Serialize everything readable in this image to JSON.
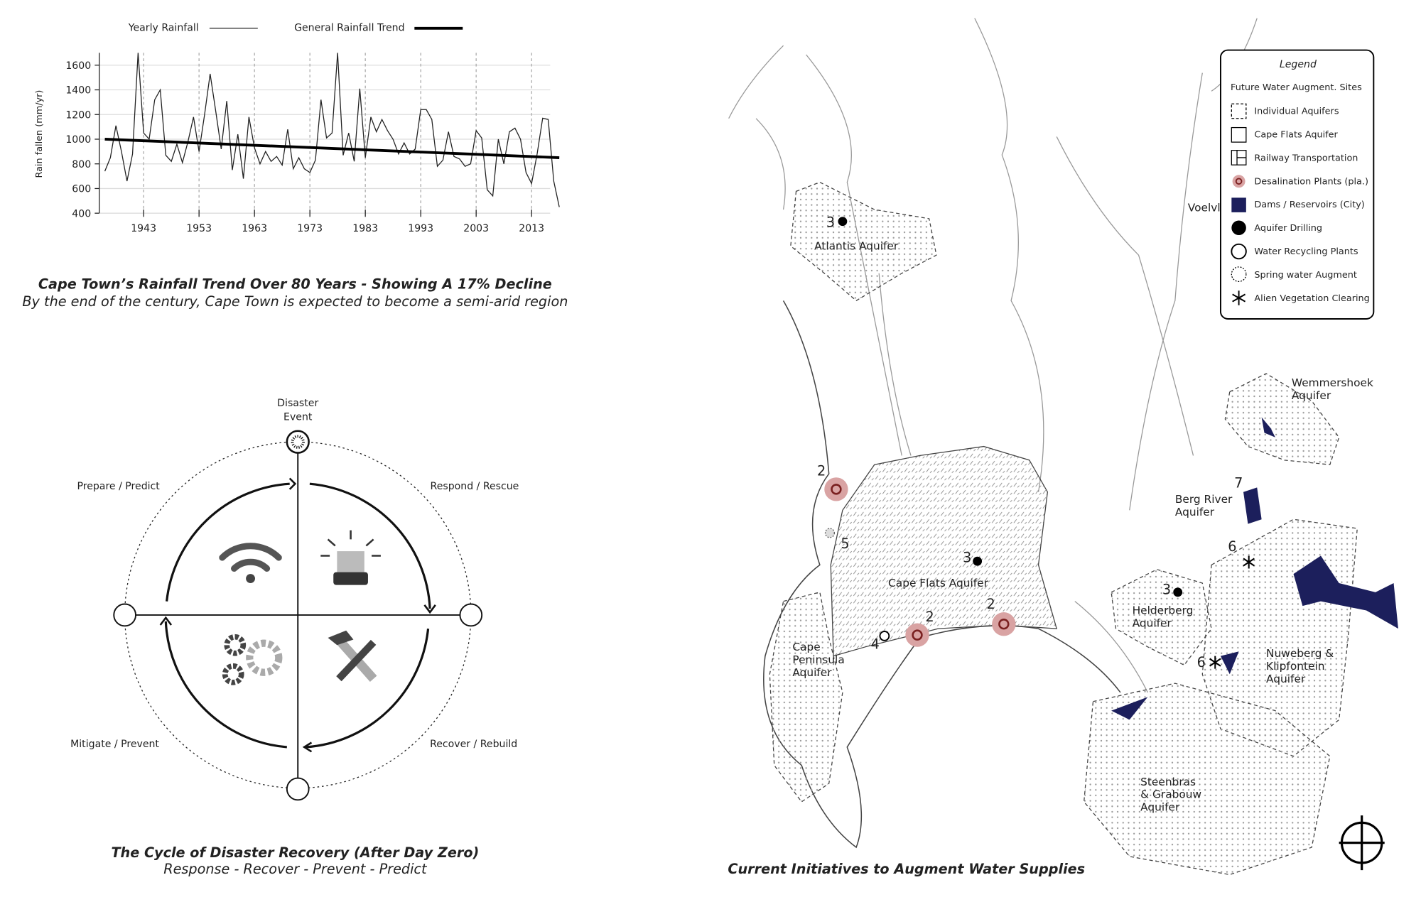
{
  "chart_data": {
    "type": "line",
    "ylabel": "Rain fallen (mm/yr)",
    "title": "Cape Town’s Rainfall Trend Over 80 Years - Showing A 17% Decline",
    "subtitle": "By the end of the century, Cape Town is expected to become a semi-arid region",
    "x": [
      1936,
      1937,
      1938,
      1939,
      1940,
      1941,
      1942,
      1943,
      1944,
      1945,
      1946,
      1947,
      1948,
      1949,
      1950,
      1951,
      1952,
      1953,
      1954,
      1955,
      1956,
      1957,
      1958,
      1959,
      1960,
      1961,
      1962,
      1963,
      1964,
      1965,
      1966,
      1967,
      1968,
      1969,
      1970,
      1971,
      1972,
      1973,
      1974,
      1975,
      1976,
      1977,
      1978,
      1979,
      1980,
      1981,
      1982,
      1983,
      1984,
      1985,
      1986,
      1987,
      1988,
      1989,
      1990,
      1991,
      1992,
      1993,
      1994,
      1995,
      1996,
      1997,
      1998,
      1999,
      2000,
      2001,
      2002,
      2003,
      2004,
      2005,
      2006,
      2007,
      2008,
      2009,
      2010,
      2011,
      2012,
      2013,
      2014,
      2015,
      2016,
      2017,
      2018
    ],
    "series": [
      {
        "name": "Yearly Rainfall",
        "color": "#222222",
        "values": [
          740,
          850,
          1110,
          900,
          660,
          880,
          1700,
          1050,
          1000,
          1320,
          1400,
          870,
          820,
          960,
          810,
          980,
          1180,
          900,
          1200,
          1530,
          1230,
          920,
          1310,
          750,
          1040,
          680,
          1180,
          930,
          800,
          900,
          820,
          860,
          790,
          1080,
          760,
          850,
          760,
          730,
          830,
          1320,
          1010,
          1050,
          1700,
          870,
          1050,
          820,
          1410,
          850,
          1180,
          1060,
          1160,
          1070,
          1000,
          880,
          970,
          880,
          920,
          1240,
          1240,
          1160,
          780,
          830,
          1060,
          860,
          840,
          780,
          800,
          1070,
          1010,
          590,
          540,
          1000,
          800,
          1060,
          1090,
          1000,
          730,
          640,
          880,
          1170,
          1160,
          660,
          450
        ]
      },
      {
        "name": "General Rainfall Trend",
        "color": "#000000",
        "x": [
          1936,
          2018
        ],
        "values": [
          1000,
          850
        ]
      }
    ],
    "xlim": [
      1935,
      2018
    ],
    "xticks": [
      1943,
      1953,
      1963,
      1973,
      1983,
      1993,
      2003,
      2013
    ],
    "ylim": [
      400,
      1700
    ],
    "yticks": [
      400,
      600,
      800,
      1000,
      1200,
      1400,
      1600
    ],
    "grid": true
  },
  "diagram": {
    "top_label": [
      "Disaster",
      "Event"
    ],
    "quadrants": [
      "Prepare / Predict",
      "Respond / Rescue",
      "Mitigate / Prevent",
      "Recover / Rebuild"
    ],
    "title": "The Cycle of Disaster Recovery (After Day Zero)",
    "subtitle": "Response - Recover - Prevent - Predict"
  },
  "map": {
    "title": "Current Initiatives to Augment Water Supplies",
    "legend": {
      "title": "Legend",
      "heading": "Future Water Augment. Sites",
      "items": [
        "Individual Aquifers",
        "Cape Flats Aquifer",
        "Railway Transportation",
        "Desalination Plants (pla.)",
        "Dams / Reservoirs (City)",
        "Aquifer Drilling",
        "Water Recycling Plants",
        "Spring water Augment",
        "Alien Vegetation Clearing"
      ]
    },
    "regions": [
      [
        "Atlantis Aquifer"
      ],
      [
        "Cape Flats Aquifer"
      ],
      [
        "Cape",
        "Peninsula",
        "Aquifer"
      ],
      [
        "Helderberg",
        "Aquifer"
      ],
      [
        "Nuweberg &",
        "Klipfontein",
        "Aquifer"
      ],
      [
        "Steenbras",
        "& Grabouw",
        "Aquifer"
      ],
      [
        "Berg River",
        "Aquifer"
      ],
      [
        "Wemmershoek",
        "Aquifer"
      ],
      [
        "Voelvl"
      ]
    ],
    "markers": [
      "3",
      "2",
      "5",
      "3",
      "2",
      "2",
      "4",
      "3",
      "7",
      "6",
      "6"
    ]
  }
}
